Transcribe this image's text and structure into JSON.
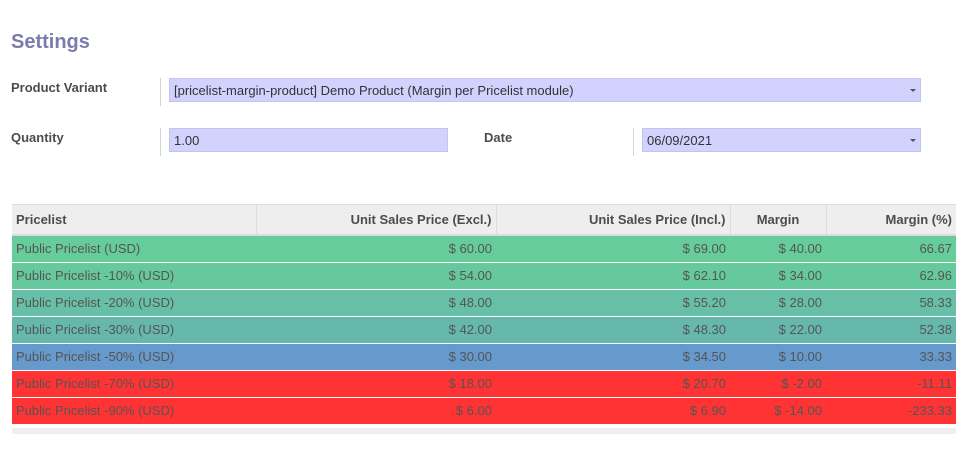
{
  "page": {
    "title": "Settings"
  },
  "form": {
    "product_variant_label": "Product Variant",
    "product_variant_value": "[pricelist-margin-product] Demo Product (Margin per Pricelist module)",
    "quantity_label": "Quantity",
    "quantity_value": "1.00",
    "date_label": "Date",
    "date_value": "06/09/2021"
  },
  "table": {
    "columns": [
      "Pricelist",
      "Unit Sales Price (Excl.)",
      "Unit Sales Price (Incl.)",
      "Margin",
      "Margin (%)"
    ],
    "rows": [
      {
        "pricelist": "Public Pricelist (USD)",
        "excl": "$ 60.00",
        "incl": "$ 69.00",
        "margin": "$ 40.00",
        "margin_pct": "66.67",
        "color": "#66cc99"
      },
      {
        "pricelist": "Public Pricelist -10% (USD)",
        "excl": "$ 54.00",
        "incl": "$ 62.10",
        "margin": "$ 34.00",
        "margin_pct": "62.96",
        "color": "#66c99e"
      },
      {
        "pricelist": "Public Pricelist -20% (USD)",
        "excl": "$ 48.00",
        "incl": "$ 55.20",
        "margin": "$ 28.00",
        "margin_pct": "58.33",
        "color": "#66bfa6"
      },
      {
        "pricelist": "Public Pricelist -30% (USD)",
        "excl": "$ 42.00",
        "incl": "$ 48.30",
        "margin": "$ 22.00",
        "margin_pct": "52.38",
        "color": "#66b8ad"
      },
      {
        "pricelist": "Public Pricelist -50% (USD)",
        "excl": "$ 30.00",
        "incl": "$ 34.50",
        "margin": "$ 10.00",
        "margin_pct": "33.33",
        "color": "#6699cc"
      },
      {
        "pricelist": "Public Pricelist -70% (USD)",
        "excl": "$ 18.00",
        "incl": "$ 20.70",
        "margin": "$ -2.00",
        "margin_pct": "-11.11",
        "color": "#ff3333"
      },
      {
        "pricelist": "Public Pricelist -90% (USD)",
        "excl": "$ 6.00",
        "incl": "$ 6.90",
        "margin": "$ -14.00",
        "margin_pct": "-233.33",
        "color": "#ff3333"
      }
    ]
  }
}
